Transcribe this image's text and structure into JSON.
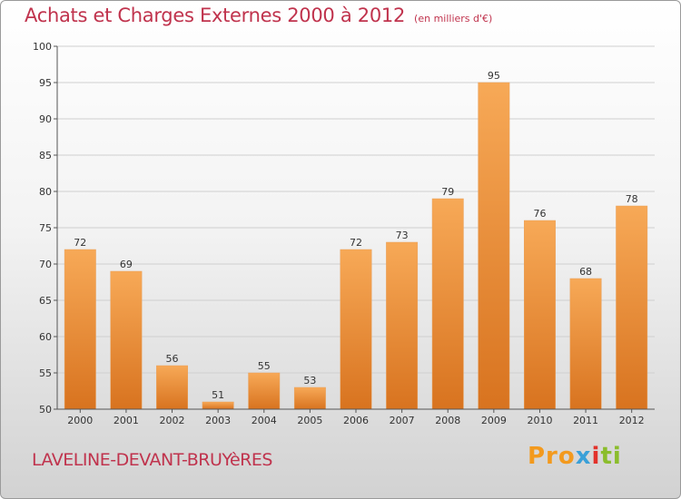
{
  "header": {
    "title": "Achats et Charges Externes 2000 à 2012",
    "subtitle": "(en milliers d'€)"
  },
  "footer": {
    "commune": "LAVELINE-DEVANT-BRUYèRES",
    "logo": [
      "Pro",
      "x",
      "i",
      "ti"
    ]
  },
  "colors": {
    "bar_top": "#f7a957",
    "bar_bottom": "#d8731f",
    "title": "#c0334d"
  },
  "chart_data": {
    "type": "bar",
    "categories": [
      "2000",
      "2001",
      "2002",
      "2003",
      "2004",
      "2005",
      "2006",
      "2007",
      "2008",
      "2009",
      "2010",
      "2011",
      "2012"
    ],
    "values": [
      72,
      69,
      56,
      51,
      55,
      53,
      72,
      73,
      79,
      95,
      76,
      68,
      78
    ],
    "title": "Achats et Charges Externes 2000 à 2012",
    "subtitle": "(en milliers d'€)",
    "xlabel": "",
    "ylabel": "",
    "ylim": [
      50,
      100
    ],
    "yticks": [
      50,
      55,
      60,
      65,
      70,
      75,
      80,
      85,
      90,
      95,
      100
    ],
    "grid": true
  }
}
